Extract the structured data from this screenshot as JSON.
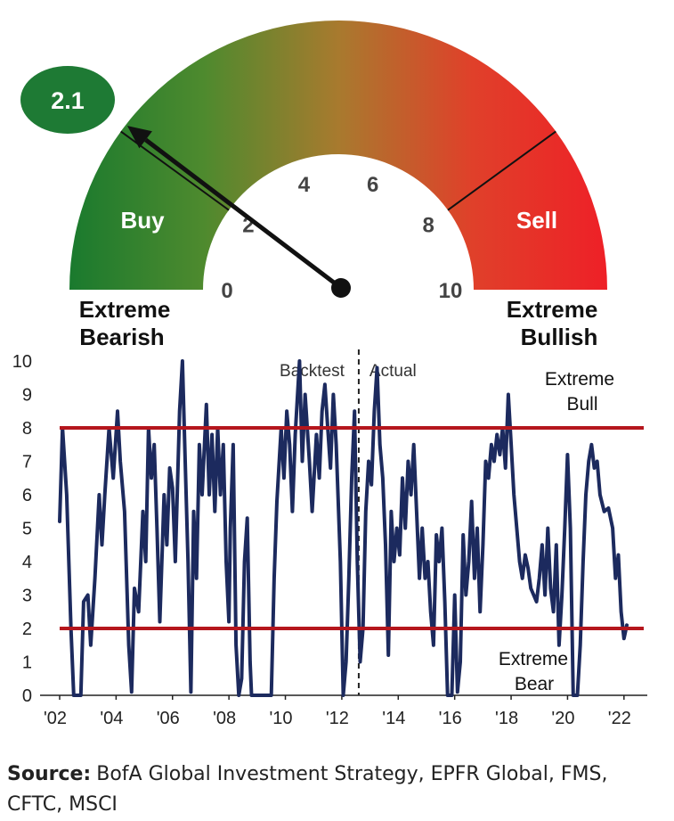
{
  "gauge": {
    "reading_label": "2.1",
    "reading": 2.1,
    "range": [
      0,
      10
    ],
    "ticks": [
      "0",
      "2",
      "4",
      "6",
      "8",
      "10"
    ],
    "zone_buy": "Buy",
    "zone_sell": "Sell",
    "left_label": [
      "Extreme",
      "Bearish"
    ],
    "right_label": [
      "Extreme",
      "Bullish"
    ],
    "colors": {
      "bearish": "#1a7a2e",
      "neutral": "#a87a2e",
      "bullish": "#ee2027",
      "badge": "#1e7a34",
      "needle": "#111111"
    }
  },
  "chart_data": {
    "type": "line",
    "ylim": [
      0,
      10
    ],
    "yticks": [
      "0",
      "1",
      "2",
      "3",
      "4",
      "5",
      "6",
      "7",
      "8",
      "9",
      "10"
    ],
    "xlim": [
      2002,
      2022.7
    ],
    "xticks": [
      {
        "label": "'02",
        "x": 2002
      },
      {
        "label": "'04",
        "x": 2004
      },
      {
        "label": "'06",
        "x": 2006
      },
      {
        "label": "'08",
        "x": 2008
      },
      {
        "label": "'10",
        "x": 2010
      },
      {
        "label": "'12",
        "x": 2012
      },
      {
        "label": "'14",
        "x": 2014
      },
      {
        "label": "'16",
        "x": 2016
      },
      {
        "label": "'18",
        "x": 2018
      },
      {
        "label": "'20",
        "x": 2020
      },
      {
        "label": "'22",
        "x": 2022
      }
    ],
    "divider": {
      "x": 2012.6,
      "left_label": "Backtest",
      "right_label": "Actual"
    },
    "thresholds": [
      {
        "value": 8,
        "label": [
          "Extreme",
          "Bull"
        ]
      },
      {
        "value": 2,
        "label": [
          "Extreme",
          "Bear"
        ]
      }
    ],
    "series": [
      {
        "color": "#1c2a5e",
        "threshold_color": "#b5161d",
        "points": [
          [
            2002.0,
            5.2
          ],
          [
            2002.1,
            8.0
          ],
          [
            2002.25,
            6.0
          ],
          [
            2002.4,
            2.0
          ],
          [
            2002.5,
            0
          ],
          [
            2002.75,
            0
          ],
          [
            2002.85,
            2.8
          ],
          [
            2003.0,
            3.0
          ],
          [
            2003.1,
            1.5
          ],
          [
            2003.25,
            3.5
          ],
          [
            2003.4,
            6.0
          ],
          [
            2003.5,
            4.5
          ],
          [
            2003.6,
            6.0
          ],
          [
            2003.75,
            8.0
          ],
          [
            2003.9,
            6.5
          ],
          [
            2004.05,
            8.5
          ],
          [
            2004.15,
            7.0
          ],
          [
            2004.3,
            5.5
          ],
          [
            2004.45,
            1.5
          ],
          [
            2004.55,
            0.1
          ],
          [
            2004.65,
            3.2
          ],
          [
            2004.8,
            2.5
          ],
          [
            2004.95,
            5.5
          ],
          [
            2005.05,
            4.0
          ],
          [
            2005.15,
            8.0
          ],
          [
            2005.25,
            6.5
          ],
          [
            2005.35,
            7.5
          ],
          [
            2005.45,
            5.0
          ],
          [
            2005.55,
            2.2
          ],
          [
            2005.7,
            6.0
          ],
          [
            2005.8,
            4.5
          ],
          [
            2005.9,
            6.8
          ],
          [
            2006.0,
            6.2
          ],
          [
            2006.1,
            4.0
          ],
          [
            2006.25,
            8.5
          ],
          [
            2006.35,
            10.0
          ],
          [
            2006.45,
            7.0
          ],
          [
            2006.55,
            4.0
          ],
          [
            2006.65,
            0.1
          ],
          [
            2006.75,
            5.5
          ],
          [
            2006.85,
            3.5
          ],
          [
            2006.95,
            7.5
          ],
          [
            2007.05,
            6.0
          ],
          [
            2007.2,
            8.7
          ],
          [
            2007.3,
            6.0
          ],
          [
            2007.4,
            7.8
          ],
          [
            2007.5,
            5.5
          ],
          [
            2007.6,
            8.0
          ],
          [
            2007.7,
            6.0
          ],
          [
            2007.8,
            7.5
          ],
          [
            2007.9,
            4.0
          ],
          [
            2008.0,
            2.2
          ],
          [
            2008.05,
            5.0
          ],
          [
            2008.15,
            7.5
          ],
          [
            2008.25,
            1.5
          ],
          [
            2008.35,
            0
          ],
          [
            2008.45,
            0.5
          ],
          [
            2008.55,
            4.0
          ],
          [
            2008.65,
            5.3
          ],
          [
            2008.75,
            1.0
          ],
          [
            2008.8,
            0
          ],
          [
            2009.5,
            0
          ],
          [
            2009.6,
            3.5
          ],
          [
            2009.7,
            5.8
          ],
          [
            2009.85,
            8.0
          ],
          [
            2009.95,
            6.5
          ],
          [
            2010.05,
            8.5
          ],
          [
            2010.15,
            7.5
          ],
          [
            2010.25,
            5.5
          ],
          [
            2010.35,
            7.8
          ],
          [
            2010.5,
            10.0
          ],
          [
            2010.6,
            7.0
          ],
          [
            2010.7,
            9.0
          ],
          [
            2010.85,
            7.0
          ],
          [
            2010.95,
            5.5
          ],
          [
            2011.1,
            7.8
          ],
          [
            2011.2,
            6.5
          ],
          [
            2011.3,
            8.5
          ],
          [
            2011.4,
            9.3
          ],
          [
            2011.5,
            8.0
          ],
          [
            2011.6,
            6.8
          ],
          [
            2011.7,
            9.0
          ],
          [
            2011.8,
            7.5
          ],
          [
            2011.95,
            4.0
          ],
          [
            2012.05,
            0
          ],
          [
            2012.15,
            1.0
          ],
          [
            2012.25,
            3.5
          ],
          [
            2012.35,
            6.5
          ],
          [
            2012.45,
            8.5
          ],
          [
            2012.55,
            4.0
          ],
          [
            2012.65,
            1.0
          ],
          [
            2012.75,
            2.0
          ],
          [
            2012.85,
            5.5
          ],
          [
            2012.95,
            7.0
          ],
          [
            2013.05,
            6.3
          ],
          [
            2013.15,
            8.5
          ],
          [
            2013.25,
            9.8
          ],
          [
            2013.35,
            7.5
          ],
          [
            2013.45,
            6.5
          ],
          [
            2013.55,
            4.5
          ],
          [
            2013.65,
            1.2
          ],
          [
            2013.75,
            5.5
          ],
          [
            2013.85,
            4.0
          ],
          [
            2013.95,
            5.0
          ],
          [
            2014.05,
            4.2
          ],
          [
            2014.15,
            6.5
          ],
          [
            2014.25,
            5.0
          ],
          [
            2014.35,
            7.0
          ],
          [
            2014.45,
            6.0
          ],
          [
            2014.55,
            7.5
          ],
          [
            2014.65,
            5.5
          ],
          [
            2014.75,
            3.5
          ],
          [
            2014.85,
            5.0
          ],
          [
            2014.95,
            3.5
          ],
          [
            2015.05,
            4.0
          ],
          [
            2015.15,
            2.5
          ],
          [
            2015.25,
            1.5
          ],
          [
            2015.35,
            4.8
          ],
          [
            2015.45,
            4.0
          ],
          [
            2015.55,
            5.0
          ],
          [
            2015.65,
            2.8
          ],
          [
            2015.75,
            0
          ],
          [
            2015.9,
            0
          ],
          [
            2016.0,
            3.0
          ],
          [
            2016.1,
            0.1
          ],
          [
            2016.2,
            1.0
          ],
          [
            2016.3,
            4.8
          ],
          [
            2016.4,
            3.0
          ],
          [
            2016.5,
            4.0
          ],
          [
            2016.6,
            5.8
          ],
          [
            2016.7,
            3.5
          ],
          [
            2016.8,
            5.0
          ],
          [
            2016.9,
            2.5
          ],
          [
            2017.0,
            4.5
          ],
          [
            2017.1,
            7.0
          ],
          [
            2017.2,
            6.5
          ],
          [
            2017.3,
            7.5
          ],
          [
            2017.4,
            7.0
          ],
          [
            2017.5,
            7.8
          ],
          [
            2017.6,
            7.2
          ],
          [
            2017.7,
            8.0
          ],
          [
            2017.8,
            6.8
          ],
          [
            2017.9,
            9.0
          ],
          [
            2018.0,
            7.5
          ],
          [
            2018.1,
            6.0
          ],
          [
            2018.2,
            5.0
          ],
          [
            2018.3,
            4.0
          ],
          [
            2018.4,
            3.5
          ],
          [
            2018.5,
            4.2
          ],
          [
            2018.6,
            3.8
          ],
          [
            2018.7,
            3.2
          ],
          [
            2018.8,
            3.0
          ],
          [
            2018.9,
            2.8
          ],
          [
            2019.0,
            3.5
          ],
          [
            2019.1,
            4.5
          ],
          [
            2019.2,
            3.0
          ],
          [
            2019.3,
            5.0
          ],
          [
            2019.4,
            3.2
          ],
          [
            2019.5,
            2.5
          ],
          [
            2019.6,
            4.5
          ],
          [
            2019.7,
            1.5
          ],
          [
            2019.8,
            3.0
          ],
          [
            2019.9,
            5.0
          ],
          [
            2020.0,
            7.2
          ],
          [
            2020.1,
            5.0
          ],
          [
            2020.2,
            0
          ],
          [
            2020.35,
            0
          ],
          [
            2020.45,
            1.5
          ],
          [
            2020.55,
            4.0
          ],
          [
            2020.65,
            6.0
          ],
          [
            2020.75,
            7.0
          ],
          [
            2020.85,
            7.5
          ],
          [
            2020.95,
            6.8
          ],
          [
            2021.05,
            7.0
          ],
          [
            2021.15,
            6.0
          ],
          [
            2021.3,
            5.5
          ],
          [
            2021.45,
            5.6
          ],
          [
            2021.6,
            5.0
          ],
          [
            2021.7,
            3.5
          ],
          [
            2021.8,
            4.2
          ],
          [
            2021.9,
            2.5
          ],
          [
            2022.0,
            1.7
          ],
          [
            2022.1,
            2.1
          ]
        ]
      }
    ]
  },
  "source": {
    "label": "Source:",
    "text": "BofA Global Investment Strategy, EPFR Global, FMS, CFTC, MSCI"
  }
}
